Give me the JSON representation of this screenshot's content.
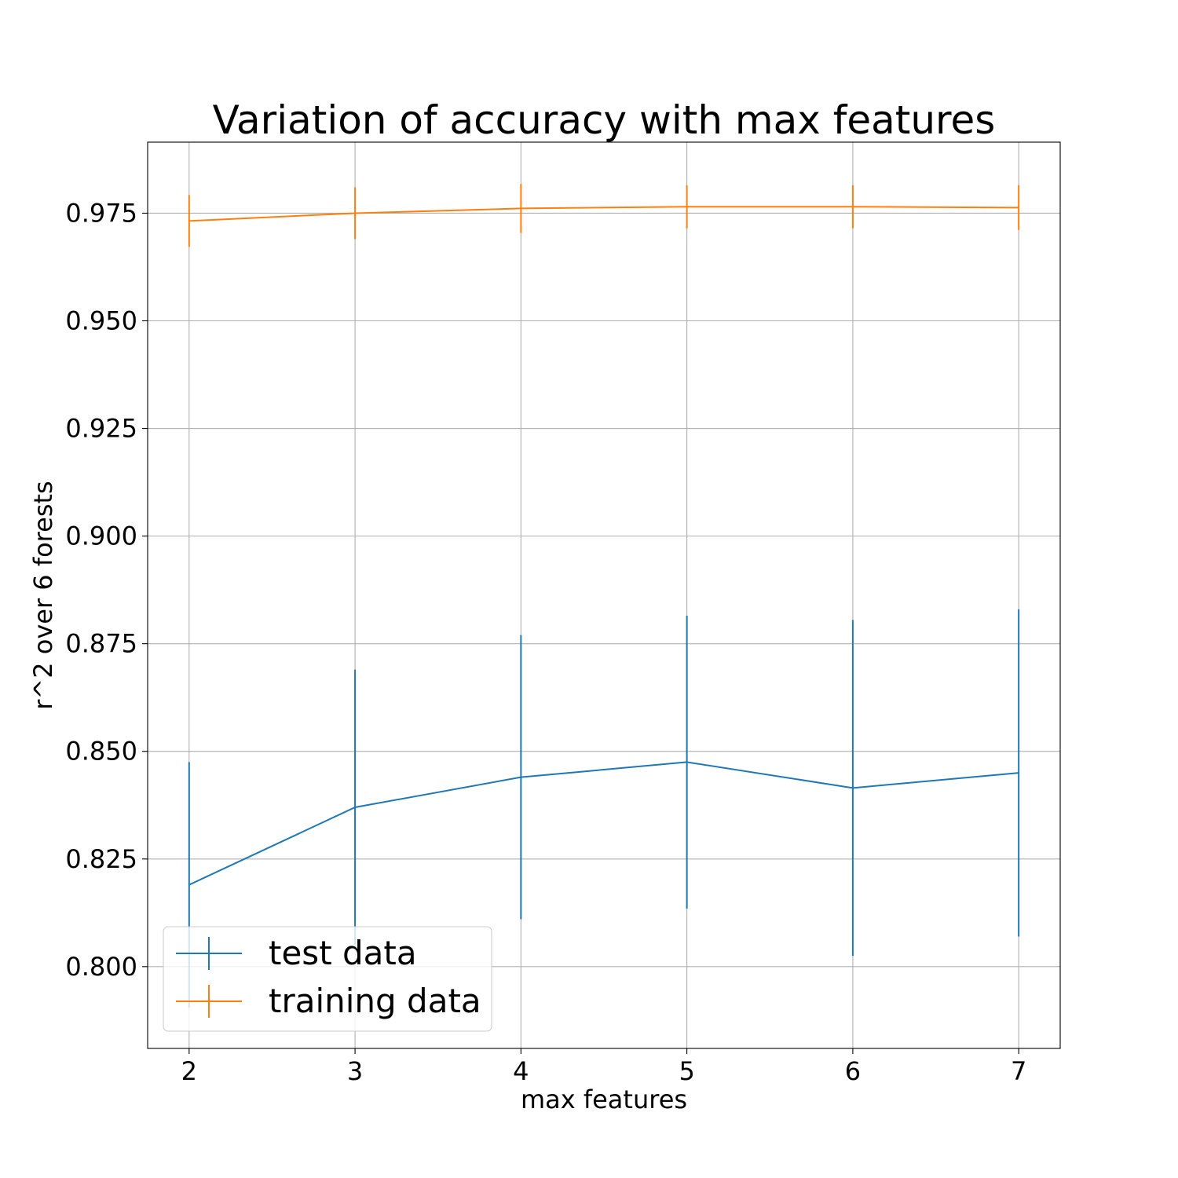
{
  "chart_data": {
    "type": "line",
    "title": "Variation of accuracy with max features",
    "xlabel": "max features",
    "ylabel": "r^2 over 6 forests",
    "x": [
      2,
      3,
      4,
      5,
      6,
      7
    ],
    "xticks": [
      "2",
      "3",
      "4",
      "5",
      "6",
      "7"
    ],
    "yticks": [
      "0.800",
      "0.825",
      "0.850",
      "0.875",
      "0.900",
      "0.925",
      "0.950",
      "0.975"
    ],
    "xlim": [
      1.75,
      7.25
    ],
    "ylim": [
      0.781,
      0.9915
    ],
    "grid": true,
    "legend_position": "lower-left",
    "series": [
      {
        "name": "test data",
        "color": "#1f77b4",
        "values": [
          0.819,
          0.837,
          0.844,
          0.8475,
          0.8415,
          0.845
        ],
        "errors": [
          0.0285,
          0.032,
          0.033,
          0.034,
          0.039,
          0.038
        ]
      },
      {
        "name": "training data",
        "color": "#ff7f0e",
        "values": [
          0.9732,
          0.975,
          0.9761,
          0.9765,
          0.9765,
          0.9763
        ],
        "errors": [
          0.006,
          0.006,
          0.0057,
          0.005,
          0.005,
          0.0052
        ]
      }
    ]
  }
}
